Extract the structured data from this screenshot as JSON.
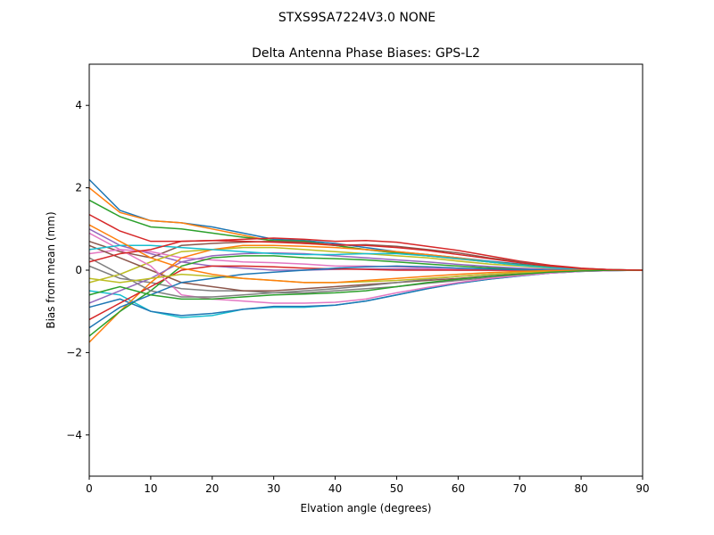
{
  "suptitle": "STXS9SA7224V3.0 NONE",
  "chart_data": {
    "type": "line",
    "title": "Delta Antenna Phase Biases: GPS-L2",
    "xlabel": "Elvation angle (degrees)",
    "ylabel": "Bias from mean (mm)",
    "xlim": [
      0,
      90
    ],
    "ylim": [
      -5,
      5
    ],
    "xticks": [
      0,
      10,
      20,
      30,
      40,
      50,
      60,
      70,
      80,
      90
    ],
    "yticks": [
      -4,
      -2,
      0,
      2,
      4
    ],
    "ytick_labels": [
      "−4",
      "−2",
      "0",
      "2",
      "4"
    ],
    "grid": false,
    "colors": [
      "#1f77b4",
      "#ff7f0e",
      "#2ca02c",
      "#d62728",
      "#9467bd",
      "#8c564b",
      "#e377c2",
      "#7f7f7f",
      "#bcbd22",
      "#17becf"
    ],
    "x": [
      0,
      5,
      10,
      15,
      20,
      25,
      30,
      35,
      40,
      45,
      50,
      55,
      60,
      65,
      70,
      75,
      80,
      85,
      90
    ],
    "series": [
      {
        "values": [
          2.2,
          1.45,
          1.2,
          1.15,
          1.05,
          0.9,
          0.75,
          0.72,
          0.65,
          0.55,
          0.45,
          0.38,
          0.3,
          0.22,
          0.15,
          0.08,
          0.04,
          0.01,
          0
        ]
      },
      {
        "values": [
          2.0,
          1.4,
          1.2,
          1.15,
          1.0,
          0.85,
          0.7,
          0.65,
          0.6,
          0.5,
          0.42,
          0.35,
          0.27,
          0.2,
          0.13,
          0.07,
          0.03,
          0.01,
          0
        ]
      },
      {
        "values": [
          1.7,
          1.3,
          1.05,
          1.0,
          0.9,
          0.8,
          0.72,
          0.7,
          0.6,
          0.5,
          0.42,
          0.35,
          0.28,
          0.2,
          0.13,
          0.07,
          0.03,
          0.01,
          0
        ]
      },
      {
        "values": [
          1.35,
          0.95,
          0.7,
          0.7,
          0.72,
          0.75,
          0.78,
          0.75,
          0.7,
          0.72,
          0.68,
          0.58,
          0.48,
          0.35,
          0.22,
          0.12,
          0.05,
          0.01,
          0
        ]
      },
      {
        "values": [
          1.0,
          0.6,
          0.4,
          0.2,
          0.1,
          0.05,
          0.0,
          0.0,
          0.02,
          0.03,
          0.03,
          0.02,
          0.0,
          0,
          0,
          0,
          0,
          0,
          0
        ]
      },
      {
        "values": [
          0.7,
          0.45,
          0.3,
          0.6,
          0.65,
          0.68,
          0.7,
          0.68,
          0.6,
          0.62,
          0.58,
          0.5,
          0.42,
          0.3,
          0.2,
          0.1,
          0.04,
          0.01,
          0
        ]
      },
      {
        "values": [
          0.4,
          0.5,
          0.45,
          0.3,
          0.25,
          0.2,
          0.18,
          0.15,
          0.1,
          0.1,
          0.08,
          0.05,
          0.02,
          0,
          0,
          0,
          0,
          0,
          0
        ]
      },
      {
        "values": [
          0.1,
          -0.2,
          -0.3,
          -0.45,
          -0.5,
          -0.5,
          -0.55,
          -0.55,
          -0.5,
          -0.45,
          -0.4,
          -0.32,
          -0.25,
          -0.18,
          -0.12,
          -0.06,
          -0.02,
          0,
          0
        ]
      },
      {
        "values": [
          -0.3,
          -0.1,
          0.2,
          0.45,
          0.5,
          0.55,
          0.55,
          0.5,
          0.45,
          0.4,
          0.35,
          0.3,
          0.22,
          0.15,
          0.1,
          0.05,
          0.02,
          0,
          0
        ]
      },
      {
        "values": [
          -0.5,
          -0.6,
          -1.0,
          -1.15,
          -1.1,
          -0.95,
          -0.9,
          -0.9,
          -0.85,
          -0.75,
          -0.6,
          -0.45,
          -0.32,
          -0.22,
          -0.14,
          -0.07,
          -0.03,
          -0.01,
          0
        ]
      },
      {
        "values": [
          -0.9,
          -0.7,
          -1.0,
          -1.1,
          -1.05,
          -0.95,
          -0.88,
          -0.88,
          -0.85,
          -0.75,
          -0.6,
          -0.45,
          -0.32,
          -0.22,
          -0.14,
          -0.07,
          -0.03,
          -0.01,
          0
        ]
      },
      {
        "values": [
          -1.75,
          -1.0,
          -0.3,
          0.3,
          0.5,
          0.6,
          0.6,
          0.58,
          0.55,
          0.5,
          0.45,
          0.38,
          0.3,
          0.2,
          0.12,
          0.06,
          0.02,
          0,
          0
        ]
      },
      {
        "values": [
          -1.6,
          -1.0,
          -0.5,
          0.1,
          0.3,
          0.35,
          0.35,
          0.3,
          0.28,
          0.25,
          0.2,
          0.15,
          0.1,
          0.06,
          0.03,
          0.01,
          0,
          0,
          0
        ]
      },
      {
        "values": [
          -1.2,
          -0.8,
          -0.4,
          0.0,
          0.1,
          0.1,
          0.08,
          0.05,
          0.03,
          0.02,
          0.0,
          0,
          0,
          0,
          0,
          0,
          0,
          0,
          0
        ]
      },
      {
        "values": [
          -0.8,
          -0.5,
          -0.2,
          0.2,
          0.35,
          0.4,
          0.42,
          0.4,
          0.35,
          0.3,
          0.25,
          0.2,
          0.14,
          0.09,
          0.05,
          0.02,
          0.01,
          0,
          0
        ]
      },
      {
        "values": [
          0.6,
          0.3,
          0.0,
          -0.3,
          -0.4,
          -0.5,
          -0.5,
          -0.45,
          -0.4,
          -0.35,
          -0.3,
          -0.25,
          -0.2,
          -0.14,
          -0.09,
          -0.05,
          -0.02,
          0,
          0
        ]
      },
      {
        "values": [
          0.9,
          0.5,
          0.1,
          -0.6,
          -0.7,
          -0.75,
          -0.8,
          -0.8,
          -0.78,
          -0.7,
          -0.55,
          -0.42,
          -0.3,
          -0.2,
          -0.13,
          -0.07,
          -0.03,
          -0.01,
          0
        ]
      },
      {
        "values": [
          0.3,
          -0.1,
          -0.5,
          -0.65,
          -0.65,
          -0.6,
          -0.55,
          -0.5,
          -0.45,
          -0.38,
          -0.3,
          -0.22,
          -0.15,
          -0.1,
          -0.06,
          -0.03,
          -0.01,
          0,
          0
        ]
      },
      {
        "values": [
          -0.2,
          -0.3,
          -0.2,
          -0.1,
          -0.15,
          -0.2,
          -0.25,
          -0.3,
          -0.3,
          -0.28,
          -0.25,
          -0.2,
          -0.15,
          -0.1,
          -0.06,
          -0.03,
          -0.01,
          0,
          0
        ]
      },
      {
        "values": [
          0.5,
          0.6,
          0.6,
          0.55,
          0.5,
          0.45,
          0.4,
          0.38,
          0.38,
          0.4,
          0.4,
          0.35,
          0.28,
          0.2,
          0.12,
          0.06,
          0.02,
          0,
          0
        ]
      },
      {
        "values": [
          -1.4,
          -0.9,
          -0.6,
          -0.3,
          -0.2,
          -0.1,
          -0.05,
          0,
          0.05,
          0.08,
          0.1,
          0.08,
          0.05,
          0.03,
          0.01,
          0,
          0,
          0,
          0
        ]
      },
      {
        "values": [
          1.1,
          0.7,
          0.3,
          0.05,
          -0.1,
          -0.2,
          -0.25,
          -0.3,
          -0.3,
          -0.25,
          -0.2,
          -0.15,
          -0.1,
          -0.06,
          -0.03,
          -0.01,
          0,
          0,
          0
        ]
      },
      {
        "values": [
          -0.6,
          -0.4,
          -0.6,
          -0.7,
          -0.7,
          -0.65,
          -0.6,
          -0.58,
          -0.55,
          -0.5,
          -0.4,
          -0.3,
          -0.22,
          -0.15,
          -0.1,
          -0.05,
          -0.02,
          0,
          0
        ]
      },
      {
        "values": [
          0.2,
          0.4,
          0.5,
          0.7,
          0.72,
          0.7,
          0.68,
          0.65,
          0.62,
          0.6,
          0.55,
          0.48,
          0.38,
          0.28,
          0.18,
          0.1,
          0.04,
          0.01,
          0
        ]
      }
    ]
  }
}
